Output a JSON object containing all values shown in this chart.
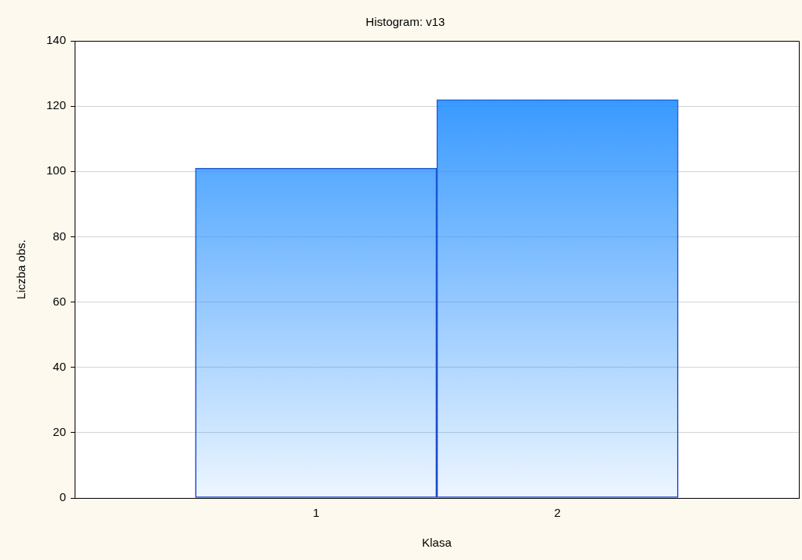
{
  "chart_data": {
    "type": "histogram",
    "title": "Histogram: v13",
    "xlabel": "Klasa",
    "ylabel": "Liczba obs.",
    "bins": [
      0.5,
      1.5,
      2.5
    ],
    "values": [
      101,
      122
    ],
    "color": "#1e8cff",
    "xlim": [
      0,
      3
    ],
    "xticks": [
      1,
      2
    ],
    "ylim": [
      0,
      140
    ],
    "yticks": [
      0,
      20,
      40,
      60,
      80,
      100,
      120,
      140
    ],
    "grid": "y",
    "legend": false
  }
}
